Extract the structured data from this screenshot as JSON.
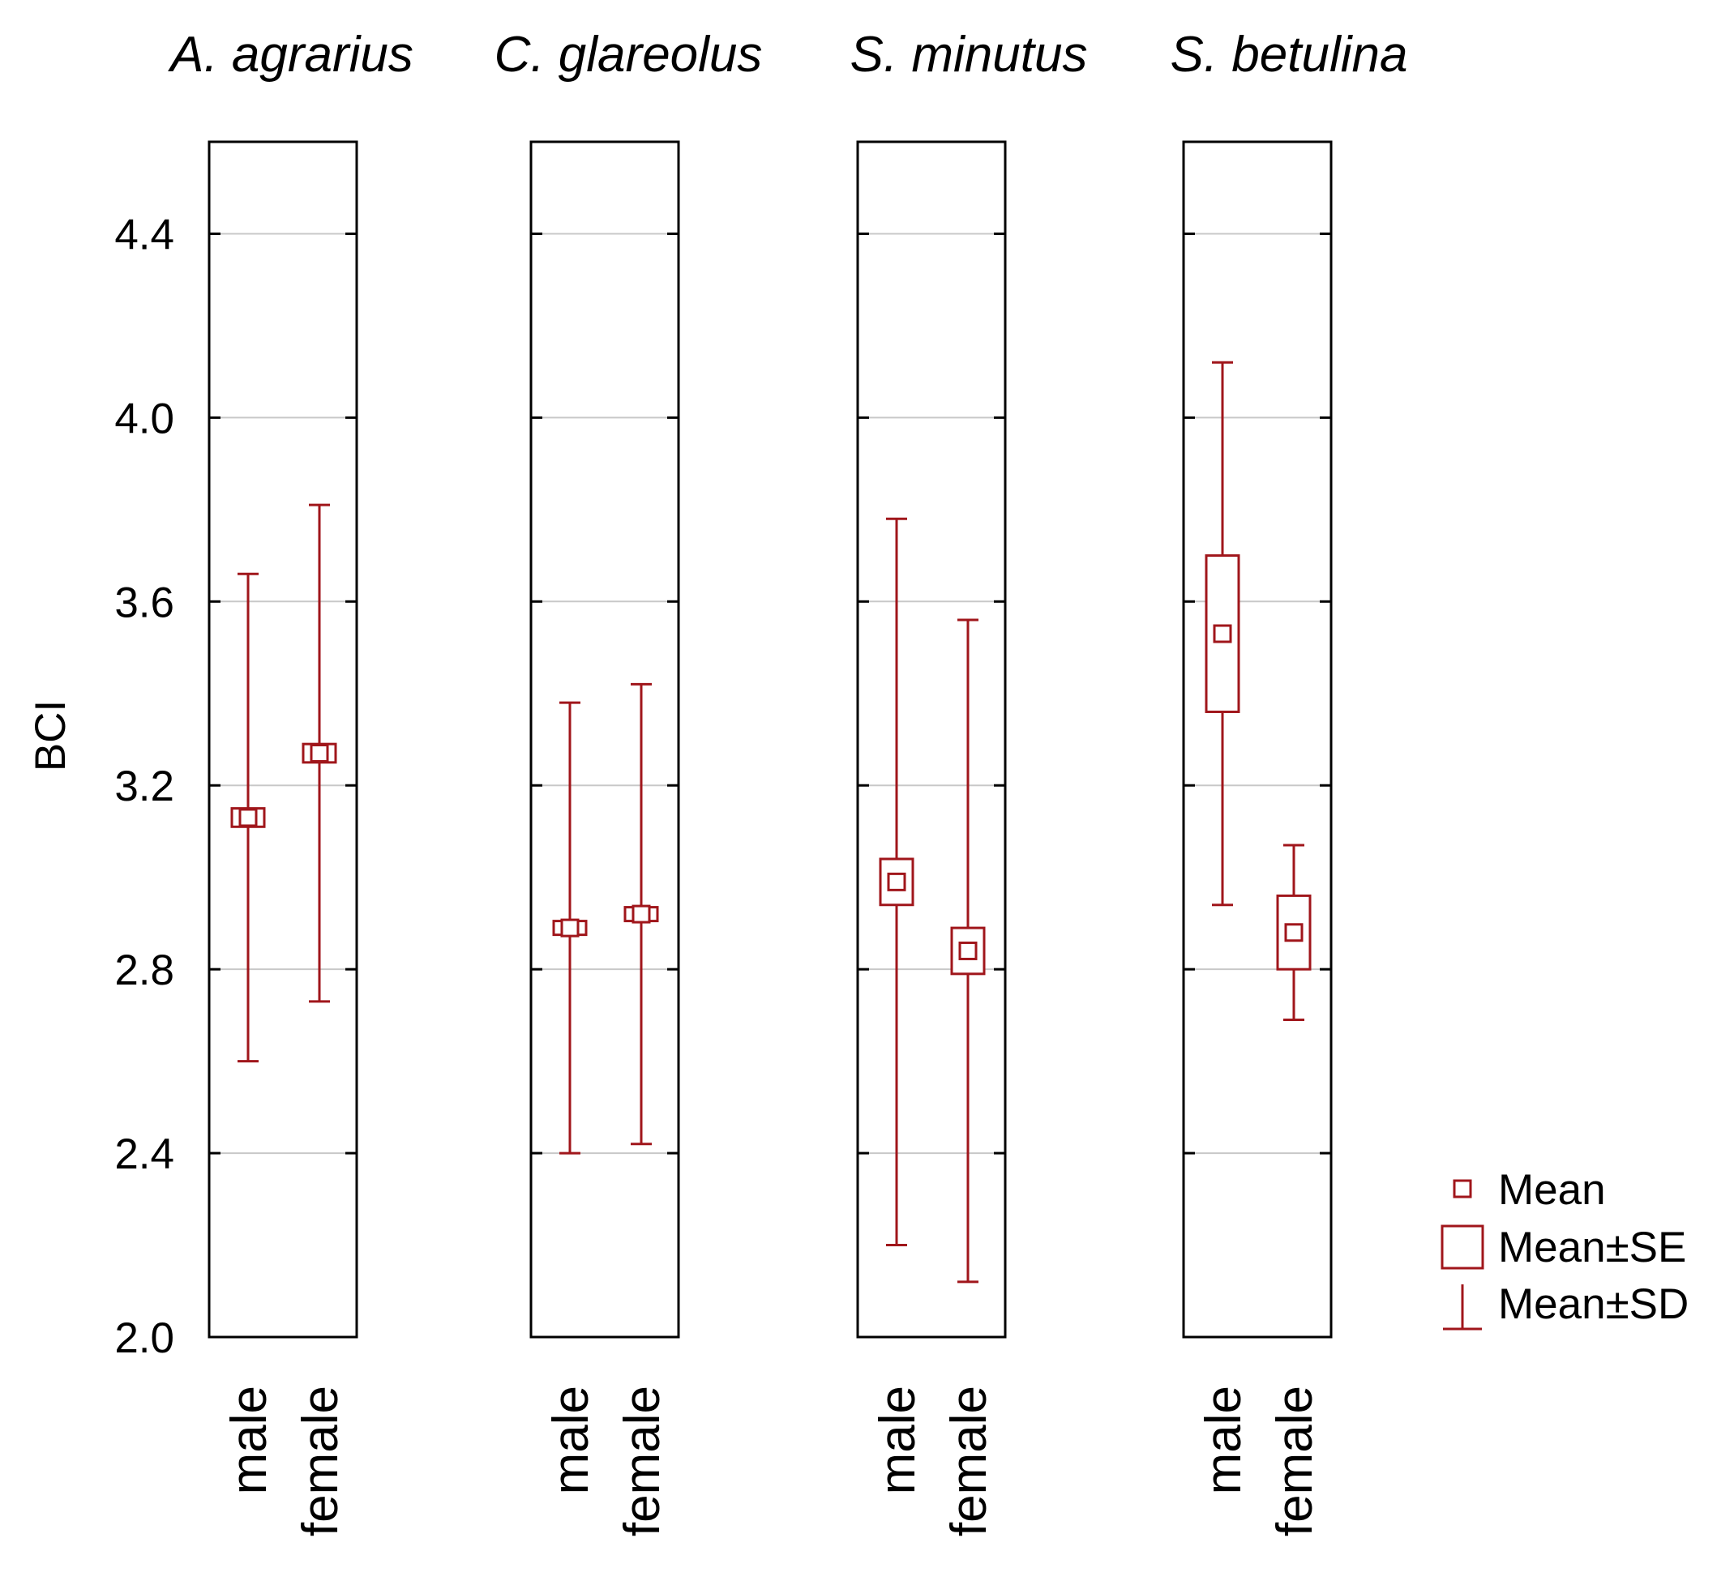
{
  "chart_data": {
    "type": "box",
    "ylabel": "BCI",
    "ylim": [
      2.0,
      4.6
    ],
    "yticks": [
      "2.0",
      "2.4",
      "2.8",
      "3.2",
      "3.6",
      "4.0",
      "4.4"
    ],
    "ytick_values": [
      2.0,
      2.4,
      2.8,
      3.2,
      3.6,
      4.0,
      4.4
    ],
    "categories": [
      "male",
      "female"
    ],
    "color": "#a0161b",
    "panels": [
      {
        "title": "A. agrarius",
        "groups": [
          {
            "label": "male",
            "mean": 3.13,
            "se": 0.02,
            "sd": 0.53
          },
          {
            "label": "female",
            "mean": 3.27,
            "se": 0.02,
            "sd": 0.54
          }
        ]
      },
      {
        "title": "C. glareolus",
        "groups": [
          {
            "label": "male",
            "mean": 2.89,
            "se": 0.015,
            "sd": 0.49
          },
          {
            "label": "female",
            "mean": 2.92,
            "se": 0.015,
            "sd": 0.5
          }
        ]
      },
      {
        "title": "S. minutus",
        "groups": [
          {
            "label": "male",
            "mean": 2.99,
            "se": 0.05,
            "sd": 0.79
          },
          {
            "label": "female",
            "mean": 2.84,
            "se": 0.05,
            "sd": 0.72
          }
        ]
      },
      {
        "title": "S. betulina",
        "groups": [
          {
            "label": "male",
            "mean": 3.53,
            "se": 0.17,
            "sd": 0.59
          },
          {
            "label": "female",
            "mean": 2.88,
            "se": 0.08,
            "sd": 0.19
          }
        ]
      }
    ],
    "legend": {
      "position": "bottom-right",
      "entries": [
        "Mean",
        "Mean±SE",
        "Mean±SD"
      ]
    }
  }
}
